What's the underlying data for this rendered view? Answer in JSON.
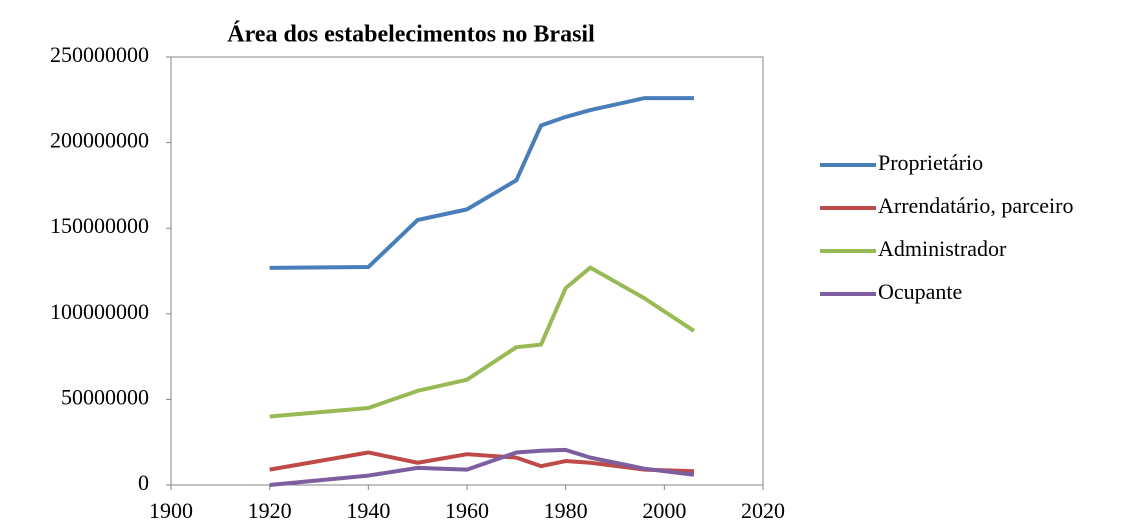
{
  "chart_data": {
    "type": "line",
    "title": "Área dos estabelecimentos no Brasil",
    "x": [
      1920,
      1940,
      1950,
      1960,
      1970,
      1975,
      1980,
      1985,
      1996,
      2006
    ],
    "series": [
      {
        "name": "Proprietário",
        "color": "#4a7ebb",
        "values": [
          126800000,
          127300000,
          154800000,
          161000000,
          178000000,
          210000000,
          215000000,
          219000000,
          226000000,
          226000000
        ]
      },
      {
        "name": "Arrendatário, parceiro",
        "color": "#be4b48",
        "values": [
          9000000,
          19000000,
          13000000,
          18000000,
          16000000,
          11000000,
          14000000,
          13000000,
          9000000,
          8000000
        ]
      },
      {
        "name": "Administrador",
        "color": "#98b954",
        "values": [
          40000000,
          45000000,
          55000000,
          61500000,
          80500000,
          82000000,
          115000000,
          127000000,
          109000000,
          90000000
        ]
      },
      {
        "name": "Ocupante",
        "color": "#7d5fa0",
        "values": [
          0,
          5500000,
          10000000,
          9000000,
          19000000,
          20000000,
          20500000,
          16000000,
          9500000,
          6000000
        ]
      }
    ],
    "xlim": [
      1900,
      2020
    ],
    "xticks": [
      1900,
      1920,
      1940,
      1960,
      1980,
      2000,
      2020
    ],
    "ylim": [
      0,
      250000000
    ],
    "yticks": [
      0,
      50000000,
      100000000,
      150000000,
      200000000,
      250000000
    ],
    "legend": "right"
  }
}
